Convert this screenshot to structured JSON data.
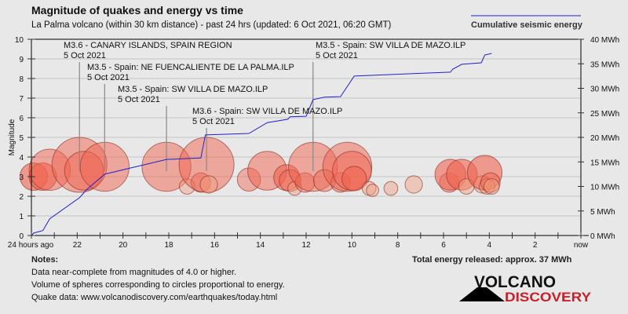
{
  "chart_data": {
    "type": "scatter",
    "title": "Magnitude of quakes and energy vs time",
    "subtitle": "La Palma volcano (within 30 km distance) - past 24 hrs (updated: 6 Oct 2021, 06:20 GMT)",
    "ylabel": "Magnitude",
    "ylim": [
      0,
      10
    ],
    "y_ticks": [
      "0",
      "1",
      "2",
      "3",
      "4",
      "5",
      "6",
      "7",
      "8",
      "9",
      "10"
    ],
    "y2lim": [
      0,
      40
    ],
    "y2_ticks": [
      "0 MWh",
      "5 MWh",
      "10 MWh",
      "15 MWh",
      "20 MWh",
      "25 MWh",
      "30 MWh",
      "35 MWh",
      "40 MWh"
    ],
    "xlim_hours_ago": [
      24,
      0
    ],
    "x_ticks": [
      "24 hours ago",
      "22",
      "20",
      "18",
      "16",
      "14",
      "12",
      "10",
      "8",
      "6",
      "4",
      "2",
      "now"
    ],
    "grid": true,
    "legend_placement": "top-right",
    "colors": {
      "energy_line": "#2020cc",
      "quake_fill": "#f06450",
      "quake_stroke": "#8b2a20"
    },
    "quakes": {
      "hours_ago": [
        23.9,
        23.5,
        23.2,
        21.9,
        21.7,
        20.8,
        18.1,
        17.2,
        16.6,
        16.35,
        16.25,
        14.5,
        13.7,
        12.85,
        12.7,
        12.5,
        12.05,
        11.7,
        11.2,
        10.5,
        10.2,
        10.0,
        9.9,
        9.25,
        9.1,
        8.3,
        7.3,
        5.75,
        5.7,
        5.2,
        5.0,
        4.3,
        4.2,
        4.1,
        3.95,
        3.9
      ],
      "magnitude": [
        3.0,
        3.0,
        3.35,
        3.6,
        3.3,
        3.5,
        3.5,
        2.5,
        2.7,
        3.6,
        2.6,
        2.85,
        3.3,
        2.95,
        2.8,
        2.4,
        2.7,
        3.5,
        2.8,
        2.7,
        3.5,
        3.3,
        2.9,
        2.4,
        2.3,
        2.4,
        2.6,
        2.7,
        3.1,
        3.1,
        2.5,
        2.6,
        3.2,
        2.5,
        2.7,
        2.5
      ]
    },
    "series": [
      {
        "name": "Cumulative seismic energy",
        "hours_ago": [
          24,
          23.9,
          23.5,
          23.2,
          21.9,
          21.6,
          20.8,
          18.1,
          16.6,
          16.4,
          14.5,
          13.7,
          12.8,
          12.7,
          12.0,
          11.7,
          11.2,
          10.5,
          9.9,
          5.7,
          5.6,
          5.2,
          4.35,
          4.2,
          3.9
        ],
        "mwh": [
          0,
          0.5,
          1.0,
          3.4,
          7.7,
          9.3,
          12.5,
          15.5,
          15.8,
          20.5,
          20.8,
          23.0,
          23.7,
          24.2,
          24.3,
          27.7,
          28.2,
          28.3,
          32.5,
          33.3,
          33.9,
          34.9,
          35.2,
          36.8,
          37.1
        ]
      }
    ],
    "annotations": [
      {
        "hours_ago": 21.9,
        "label": "M3.6 - CANARY ISLANDS, SPAIN REGION",
        "date": "5 Oct 2021"
      },
      {
        "hours_ago": 16.35,
        "label": "M3.6 - Spain: SW VILLA DE MAZO.ILP",
        "date": "5 Oct 2021"
      },
      {
        "hours_ago": 20.8,
        "label": "M3.5 - Spain: NE FUENCALIENTE DE LA PALMA.ILP",
        "date": "5 Oct 2021"
      },
      {
        "hours_ago": 11.7,
        "label": "M3.5 - Spain: SW VILLA DE MAZO.ILP",
        "date": "5 Oct 2021"
      },
      {
        "hours_ago": 18.1,
        "label": "M3.5 - Spain: SW VILLA DE MAZO.ILP",
        "date": "5 Oct 2021"
      }
    ]
  },
  "legend_label": "Cumulative seismic energy",
  "notes": {
    "heading": "Notes:",
    "lines": [
      "Data near-complete from magnitudes of 4.0 or higher.",
      "Volume of spheres corresponding to circles proportional to energy.",
      "Quake data: www.volcanodiscovery.com/earthquakes/today.html"
    ]
  },
  "total_energy": "Total energy released: approx. 37 MWh",
  "logo": {
    "line1": "VOLCANO",
    "line2": "DISCOVERY"
  }
}
